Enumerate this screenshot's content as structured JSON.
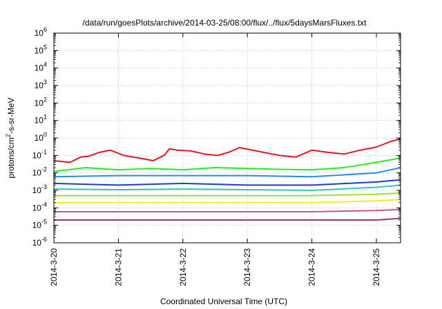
{
  "chart_data": {
    "type": "line",
    "title": "/data/run/goesPlots/archive/2014-03-25/08:00/flux/../flux/5daysMarsFluxes.txt",
    "xlabel": "Coordinated Universal Time (UTC)",
    "ylabel_base": "protons/cm",
    "ylabel_sup": "2",
    "ylabel_rest": "-s-sr-MeV",
    "yscale": "log",
    "ylim": [
      1e-06,
      1000000.0
    ],
    "y_ticks": [
      {
        "base": "10",
        "exp": "6",
        "value": 1000000.0
      },
      {
        "base": "10",
        "exp": "5",
        "value": 100000.0
      },
      {
        "base": "10",
        "exp": "4",
        "value": 10000.0
      },
      {
        "base": "10",
        "exp": "3",
        "value": 1000.0
      },
      {
        "base": "10",
        "exp": "2",
        "value": 100.0
      },
      {
        "base": "10",
        "exp": "1",
        "value": 10.0
      },
      {
        "base": "10",
        "exp": "0",
        "value": 1.0
      },
      {
        "base": "10",
        "exp": "-1",
        "value": 0.1
      },
      {
        "base": "10",
        "exp": "-2",
        "value": 0.01
      },
      {
        "base": "10",
        "exp": "-3",
        "value": 0.001
      },
      {
        "base": "10",
        "exp": "-4",
        "value": 0.0001
      },
      {
        "base": "10",
        "exp": "-5",
        "value": 1e-05
      },
      {
        "base": "10",
        "exp": "-6",
        "value": 1e-06
      }
    ],
    "xlim": [
      "2014-03-20T00:00",
      "2014-03-25T09:00"
    ],
    "x_ticks": [
      {
        "label": "2014-3-20",
        "date": "2014-03-20"
      },
      {
        "label": "2014-3-21",
        "date": "2014-03-21"
      },
      {
        "label": "2014-3-22",
        "date": "2014-03-22"
      },
      {
        "label": "2014-3-23",
        "date": "2014-03-23"
      },
      {
        "label": "2014-3-24",
        "date": "2014-03-24"
      },
      {
        "label": "2014-3-25",
        "date": "2014-03-25"
      }
    ],
    "grid": true,
    "legend": "none",
    "series": [
      {
        "color": "#e8141c",
        "points": [
          [
            "2014-03-20T00:00",
            0.05
          ],
          [
            "2014-03-20T06:00",
            0.04
          ],
          [
            "2014-03-20T10:00",
            0.08
          ],
          [
            "2014-03-20T13:00",
            0.09
          ],
          [
            "2014-03-20T17:00",
            0.15
          ],
          [
            "2014-03-20T21:00",
            0.2
          ],
          [
            "2014-03-21T02:00",
            0.1
          ],
          [
            "2014-03-21T08:00",
            0.07
          ],
          [
            "2014-03-21T13:00",
            0.05
          ],
          [
            "2014-03-21T17:00",
            0.1
          ],
          [
            "2014-03-21T19:00",
            0.24
          ],
          [
            "2014-03-21T22:00",
            0.2
          ],
          [
            "2014-03-22T03:00",
            0.18
          ],
          [
            "2014-03-22T08:00",
            0.12
          ],
          [
            "2014-03-22T13:00",
            0.1
          ],
          [
            "2014-03-22T17:00",
            0.15
          ],
          [
            "2014-03-22T21:00",
            0.28
          ],
          [
            "2014-03-23T02:00",
            0.2
          ],
          [
            "2014-03-23T06:00",
            0.15
          ],
          [
            "2014-03-23T12:00",
            0.1
          ],
          [
            "2014-03-23T18:00",
            0.08
          ],
          [
            "2014-03-24T00:00",
            0.2
          ],
          [
            "2014-03-24T06:00",
            0.15
          ],
          [
            "2014-03-24T12:00",
            0.12
          ],
          [
            "2014-03-24T18:00",
            0.2
          ],
          [
            "2014-03-25T00:00",
            0.3
          ],
          [
            "2014-03-25T05:00",
            0.6
          ],
          [
            "2014-03-25T09:00",
            0.9
          ]
        ]
      },
      {
        "color": "#1ef01e",
        "points": [
          [
            "2014-03-20T00:00",
            0.012
          ],
          [
            "2014-03-20T12:00",
            0.02
          ],
          [
            "2014-03-21T00:00",
            0.015
          ],
          [
            "2014-03-21T12:00",
            0.018
          ],
          [
            "2014-03-22T00:00",
            0.015
          ],
          [
            "2014-03-22T12:00",
            0.02
          ],
          [
            "2014-03-23T00:00",
            0.018
          ],
          [
            "2014-03-23T12:00",
            0.016
          ],
          [
            "2014-03-24T00:00",
            0.015
          ],
          [
            "2014-03-24T12:00",
            0.02
          ],
          [
            "2014-03-25T00:00",
            0.04
          ],
          [
            "2014-03-25T09:00",
            0.07
          ]
        ]
      },
      {
        "color": "#1e8cf0",
        "points": [
          [
            "2014-03-20T00:00",
            0.006
          ],
          [
            "2014-03-21T00:00",
            0.007
          ],
          [
            "2014-03-22T00:00",
            0.007
          ],
          [
            "2014-03-23T00:00",
            0.007
          ],
          [
            "2014-03-24T00:00",
            0.006
          ],
          [
            "2014-03-25T00:00",
            0.01
          ],
          [
            "2014-03-25T09:00",
            0.02
          ]
        ]
      },
      {
        "color": "#1e3cc8",
        "points": [
          [
            "2014-03-20T00:00",
            0.0025
          ],
          [
            "2014-03-21T00:00",
            0.002
          ],
          [
            "2014-03-22T00:00",
            0.0025
          ],
          [
            "2014-03-23T00:00",
            0.002
          ],
          [
            "2014-03-24T00:00",
            0.002
          ],
          [
            "2014-03-25T00:00",
            0.003
          ],
          [
            "2014-03-25T09:00",
            0.004
          ]
        ]
      },
      {
        "color": "#32c8b4",
        "points": [
          [
            "2014-03-20T00:00",
            0.0012
          ],
          [
            "2014-03-21T00:00",
            0.0011
          ],
          [
            "2014-03-22T00:00",
            0.0012
          ],
          [
            "2014-03-23T00:00",
            0.0011
          ],
          [
            "2014-03-24T00:00",
            0.001
          ],
          [
            "2014-03-25T00:00",
            0.0015
          ],
          [
            "2014-03-25T09:00",
            0.002
          ]
        ]
      },
      {
        "color": "#a0e03c",
        "points": [
          [
            "2014-03-20T00:00",
            0.0005
          ],
          [
            "2014-03-21T00:00",
            0.0005
          ],
          [
            "2014-03-22T00:00",
            0.0005
          ],
          [
            "2014-03-23T00:00",
            0.0005
          ],
          [
            "2014-03-24T00:00",
            0.0005
          ],
          [
            "2014-03-25T00:00",
            0.0006
          ],
          [
            "2014-03-25T09:00",
            0.0007
          ]
        ]
      },
      {
        "color": "#f0f01e",
        "points": [
          [
            "2014-03-20T00:00",
            0.0002
          ],
          [
            "2014-03-21T00:00",
            0.0002
          ],
          [
            "2014-03-22T00:00",
            0.0002
          ],
          [
            "2014-03-23T00:00",
            0.0002
          ],
          [
            "2014-03-24T00:00",
            0.0002
          ],
          [
            "2014-03-25T00:00",
            0.00025
          ],
          [
            "2014-03-25T09:00",
            0.0003
          ]
        ]
      },
      {
        "color": "#c05a8c",
        "points": [
          [
            "2014-03-20T00:00",
            6e-05
          ],
          [
            "2014-03-21T00:00",
            6e-05
          ],
          [
            "2014-03-22T00:00",
            6e-05
          ],
          [
            "2014-03-23T00:00",
            6e-05
          ],
          [
            "2014-03-24T00:00",
            6e-05
          ],
          [
            "2014-03-25T00:00",
            7e-05
          ],
          [
            "2014-03-25T09:00",
            8e-05
          ]
        ]
      },
      {
        "color": "#8c3c6e",
        "points": [
          [
            "2014-03-20T00:00",
            2e-05
          ],
          [
            "2014-03-21T00:00",
            2e-05
          ],
          [
            "2014-03-22T00:00",
            2e-05
          ],
          [
            "2014-03-23T00:00",
            2e-05
          ],
          [
            "2014-03-24T00:00",
            2e-05
          ],
          [
            "2014-03-25T00:00",
            2e-05
          ],
          [
            "2014-03-25T09:00",
            2.5e-05
          ]
        ]
      }
    ]
  }
}
